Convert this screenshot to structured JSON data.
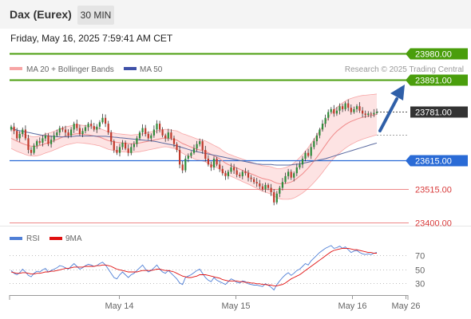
{
  "header": {
    "instrument": "Dax (Eurex)",
    "timeframe": "30 MIN"
  },
  "datetime": "Friday, May 16, 2025 7:59:41 AM CET",
  "legend": {
    "bollinger_label": "MA 20 + Bollinger Bands",
    "ma50_label": "MA 50",
    "copyright": "Research © 2025 Trading Central"
  },
  "rsi_legend": {
    "rsi_label": "RSI",
    "ma_label": "9MA"
  },
  "colors": {
    "target": "#4a9e0c",
    "current": "#333333",
    "pivot": "#2a6bd6",
    "support": "#e86262",
    "bollinger": "#f7a5a5",
    "ma50": "#5a6aa0",
    "arrow": "#2f5fa8",
    "rsi": "#4f7fd6",
    "rsi_ma": "#e01010"
  },
  "chart_data": {
    "type": "candlestick",
    "x_ticks": [
      "May 14",
      "May 15",
      "May 16",
      "May 26"
    ],
    "y_range": [
      23390,
      23995
    ],
    "levels": [
      {
        "value": 23980,
        "label": "23980.00",
        "kind": "target"
      },
      {
        "value": 23891,
        "label": "23891.00",
        "kind": "target"
      },
      {
        "value": 23781,
        "label": "23781.00",
        "kind": "current"
      },
      {
        "value": 23615,
        "label": "23615.00",
        "kind": "pivot"
      },
      {
        "value": 23515,
        "label": "23515.00",
        "kind": "support"
      },
      {
        "value": 23400,
        "label": "23400.00",
        "kind": "support"
      }
    ],
    "close": [
      23730,
      23715,
      23690,
      23705,
      23720,
      23690,
      23650,
      23640,
      23665,
      23680,
      23675,
      23690,
      23700,
      23670,
      23685,
      23700,
      23710,
      23725,
      23720,
      23710,
      23700,
      23720,
      23740,
      23725,
      23705,
      23715,
      23728,
      23740,
      23732,
      23720,
      23730,
      23745,
      23760,
      23740,
      23710,
      23680,
      23650,
      23640,
      23660,
      23675,
      23655,
      23640,
      23660,
      23670,
      23690,
      23710,
      23725,
      23705,
      23690,
      23700,
      23720,
      23740,
      23720,
      23700,
      23690,
      23710,
      23690,
      23670,
      23650,
      23600,
      23580,
      23620,
      23630,
      23640,
      23655,
      23670,
      23680,
      23650,
      23620,
      23600,
      23590,
      23620,
      23600,
      23585,
      23570,
      23560,
      23575,
      23590,
      23580,
      23565,
      23560,
      23575,
      23570,
      23555,
      23550,
      23540,
      23535,
      23525,
      23515,
      23530,
      23520,
      23505,
      23470,
      23500,
      23520,
      23540,
      23560,
      23575,
      23555,
      23570,
      23590,
      23600,
      23620,
      23640,
      23630,
      23660,
      23680,
      23700,
      23720,
      23740,
      23760,
      23780,
      23790,
      23775,
      23785,
      23800,
      23790,
      23810,
      23795,
      23780,
      23790,
      23800,
      23785,
      23775,
      23770,
      23775,
      23772,
      23777,
      23781
    ],
    "ma20": [
      23690,
      23685,
      23680,
      23676,
      23672,
      23668,
      23665,
      23663,
      23662,
      23663,
      23665,
      23668,
      23672,
      23675,
      23678,
      23682,
      23686,
      23690,
      23694,
      23698,
      23700,
      23702,
      23704,
      23706,
      23705,
      23704,
      23703,
      23702,
      23700,
      23698,
      23696,
      23694,
      23690,
      23686,
      23682,
      23680,
      23678,
      23676,
      23675,
      23674,
      23673,
      23672,
      23671,
      23672,
      23673,
      23674,
      23676,
      23678,
      23680,
      23682,
      23684,
      23686,
      23688,
      23690,
      23691,
      23690,
      23688,
      23686,
      23684,
      23678,
      23672,
      23668,
      23664,
      23660,
      23656,
      23652,
      23650,
      23648,
      23645,
      23640,
      23635,
      23630,
      23625,
      23620,
      23612,
      23605,
      23600,
      23596,
      23592,
      23588,
      23584,
      23580,
      23576,
      23572,
      23568,
      23564,
      23560,
      23556,
      23552,
      23550,
      23548,
      23545,
      23540,
      23536,
      23534,
      23534,
      23535,
      23537,
      23540,
      23545,
      23552,
      23560,
      23568,
      23578,
      23588,
      23600,
      23612,
      23625,
      23638,
      23652,
      23666,
      23680,
      23693,
      23704,
      23714,
      23722,
      23730,
      23737,
      23743,
      23748,
      23752,
      23756,
      23759,
      23762,
      23764,
      23766,
      23768,
      23770,
      23772
    ],
    "ma50": [
      23725,
      23722,
      23718,
      23716,
      23714,
      23712,
      23710,
      23708,
      23706,
      23704,
      23702,
      23700,
      23699,
      23698,
      23697,
      23696,
      23696,
      23695,
      23695,
      23695,
      23695,
      23696,
      23697,
      23698,
      23698,
      23698,
      23698,
      23698,
      23698,
      23698,
      23697,
      23697,
      23697,
      23697,
      23696,
      23695,
      23694,
      23693,
      23692,
      23691,
      23690,
      23689,
      23688,
      23687,
      23686,
      23685,
      23684,
      23683,
      23682,
      23681,
      23680,
      23678,
      23676,
      23674,
      23672,
      23670,
      23668,
      23666,
      23664,
      23661,
      23658,
      23655,
      23652,
      23649,
      23646,
      23644,
      23642,
      23640,
      23638,
      23636,
      23634,
      23632,
      23630,
      23628,
      23626,
      23624,
      23622,
      23620,
      23618,
      23616,
      23614,
      23612,
      23610,
      23608,
      23606,
      23604,
      23602,
      23601,
      23600,
      23600,
      23600,
      23600,
      23599,
      23598,
      23598,
      23598,
      23598,
      23598,
      23599,
      23600,
      23601,
      23602,
      23604,
      23606,
      23608,
      23610,
      23612,
      23614,
      23616,
      23618,
      23620,
      23623,
      23626,
      23629,
      23632,
      23635,
      23638,
      23641,
      23644,
      23647,
      23650,
      23653,
      23656,
      23659,
      23662,
      23665,
      23668,
      23671,
      23674
    ],
    "bb_width": [
      70,
      70,
      69,
      69,
      68,
      68,
      67,
      67,
      66,
      66,
      66,
      65,
      65,
      65,
      64,
      64,
      64,
      63,
      63,
      63,
      62,
      62,
      62,
      62,
      61,
      61,
      61,
      61,
      61,
      60,
      60,
      60,
      60,
      60,
      60,
      60,
      60,
      60,
      60,
      60,
      60,
      60,
      60,
      60,
      60,
      60,
      60,
      60,
      60,
      60,
      60,
      60,
      60,
      60,
      60,
      60,
      61,
      62,
      63,
      65,
      67,
      69,
      70,
      71,
      72,
      72,
      72,
      72,
      72,
      72,
      72,
      72,
      72,
      72,
      72,
      73,
      73,
      74,
      74,
      75,
      76,
      77,
      78,
      79,
      80,
      82,
      84,
      86,
      88,
      90,
      92,
      94,
      97,
      100,
      103,
      106,
      109,
      112,
      116,
      120,
      124,
      128,
      132,
      136,
      140,
      144,
      148,
      152,
      155,
      158,
      160,
      162,
      163,
      164,
      164,
      164,
      163,
      162,
      160,
      158,
      156,
      154,
      152,
      150,
      148,
      146,
      144,
      142,
      140
    ],
    "rsi": [
      48,
      44,
      42,
      45,
      50,
      46,
      41,
      39,
      44,
      47,
      46,
      49,
      51,
      46,
      48,
      50,
      52,
      55,
      54,
      52,
      50,
      54,
      58,
      54,
      50,
      52,
      55,
      57,
      56,
      54,
      55,
      58,
      60,
      56,
      50,
      44,
      38,
      36,
      42,
      46,
      42,
      38,
      42,
      44,
      48,
      52,
      56,
      50,
      46,
      48,
      52,
      56,
      50,
      46,
      44,
      48,
      44,
      40,
      36,
      30,
      28,
      38,
      40,
      42,
      45,
      48,
      50,
      44,
      38,
      34,
      32,
      38,
      34,
      32,
      30,
      28,
      32,
      36,
      34,
      31,
      30,
      33,
      32,
      29,
      28,
      27,
      27,
      26,
      25,
      29,
      27,
      24,
      20,
      28,
      33,
      38,
      42,
      45,
      41,
      44,
      48,
      50,
      54,
      58,
      56,
      62,
      66,
      70,
      74,
      77,
      80,
      82,
      84,
      80,
      81,
      83,
      80,
      82,
      78,
      74,
      76,
      77,
      74,
      72,
      71,
      72,
      71,
      73,
      74
    ],
    "rsi_ma": [
      46,
      45,
      44,
      44,
      45,
      45,
      44,
      43,
      43,
      44,
      44,
      45,
      46,
      46,
      47,
      47,
      48,
      49,
      50,
      51,
      51,
      52,
      53,
      53,
      53,
      53,
      54,
      54,
      54,
      54,
      55,
      55,
      56,
      56,
      55,
      54,
      52,
      50,
      49,
      48,
      47,
      46,
      46,
      46,
      46,
      47,
      48,
      48,
      48,
      48,
      49,
      50,
      50,
      49,
      48,
      48,
      47,
      46,
      44,
      42,
      40,
      39,
      38,
      38,
      39,
      40,
      42,
      42,
      42,
      41,
      40,
      39,
      38,
      37,
      35,
      34,
      33,
      33,
      33,
      33,
      32,
      32,
      31,
      31,
      30,
      30,
      29,
      29,
      28,
      28,
      27,
      27,
      26,
      26,
      27,
      28,
      30,
      33,
      36,
      38,
      40,
      42,
      45,
      48,
      51,
      54,
      57,
      60,
      63,
      66,
      69,
      72,
      75,
      77,
      78,
      79,
      80,
      80,
      80,
      79,
      78,
      78,
      77,
      76,
      75,
      74,
      74,
      73,
      73
    ],
    "rsi_range": [
      15,
      85
    ],
    "rsi_ticks": [
      70,
      50,
      30
    ]
  }
}
